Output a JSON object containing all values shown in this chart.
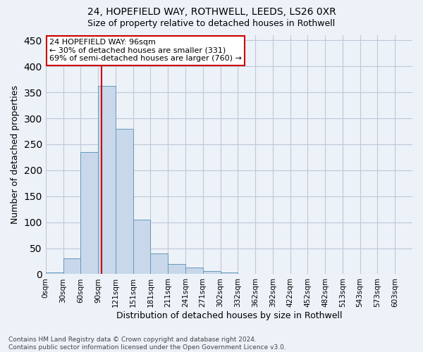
{
  "title_line1": "24, HOPEFIELD WAY, ROTHWELL, LEEDS, LS26 0XR",
  "title_line2": "Size of property relative to detached houses in Rothwell",
  "xlabel": "Distribution of detached houses by size in Rothwell",
  "ylabel": "Number of detached properties",
  "footer_line1": "Contains HM Land Registry data © Crown copyright and database right 2024.",
  "footer_line2": "Contains public sector information licensed under the Open Government Licence v3.0.",
  "bin_labels": [
    "0sqm",
    "30sqm",
    "60sqm",
    "90sqm",
    "121sqm",
    "151sqm",
    "181sqm",
    "211sqm",
    "241sqm",
    "271sqm",
    "302sqm",
    "332sqm",
    "362sqm",
    "392sqm",
    "422sqm",
    "452sqm",
    "482sqm",
    "513sqm",
    "543sqm",
    "573sqm",
    "603sqm"
  ],
  "bar_values": [
    4,
    31,
    235,
    363,
    280,
    105,
    40,
    19,
    13,
    6,
    4,
    1,
    0,
    0,
    0,
    1,
    0,
    0,
    0,
    0,
    0
  ],
  "bar_color": "#c8d8ea",
  "bar_edgecolor": "#6699bb",
  "grid_color": "#c0c8d8",
  "bg_color": "#edf2f8",
  "vline_color": "#cc0000",
  "vline_x": 3.19,
  "annotation_line1": "24 HOPEFIELD WAY: 96sqm",
  "annotation_line2": "← 30% of detached houses are smaller (331)",
  "annotation_line3": "69% of semi-detached houses are larger (760) →",
  "annotation_box_facecolor": "#ffffff",
  "annotation_box_edgecolor": "#cc0000",
  "ylim_max": 460,
  "yticks": [
    0,
    50,
    100,
    150,
    200,
    250,
    300,
    350,
    400,
    450
  ]
}
